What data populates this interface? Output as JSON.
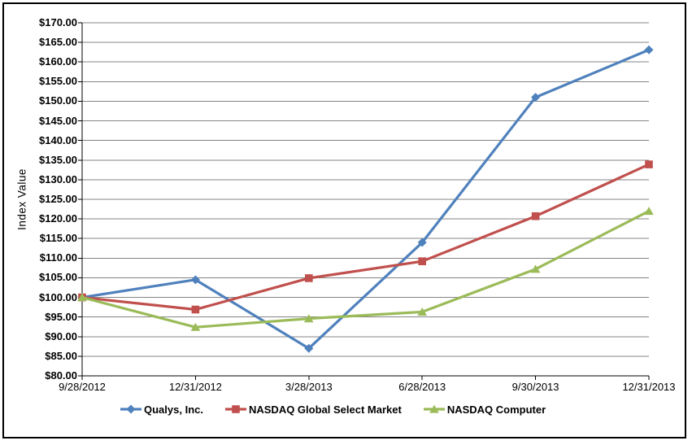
{
  "chart_data": {
    "type": "line",
    "title": "",
    "xlabel": "",
    "ylabel": "Index Value",
    "ylim": [
      80,
      170
    ],
    "y_step": 5,
    "y_tick_labels": [
      "$170.00",
      "$165.00",
      "$160.00",
      "$155.00",
      "$150.00",
      "$145.00",
      "$140.00",
      "$135.00",
      "$130.00",
      "$125.00",
      "$120.00",
      "$115.00",
      "$110.00",
      "$105.00",
      "$100.00",
      "$95.00",
      "$90.00",
      "$85.00",
      "$80.00"
    ],
    "categories": [
      "9/28/2012",
      "12/31/2012",
      "3/28/2013",
      "6/28/2013",
      "9/30/2013",
      "12/31/2013"
    ],
    "series": [
      {
        "name": "Qualys, Inc.",
        "marker": "diamond",
        "color": "#4F81BD",
        "values": [
          100.0,
          104.5,
          87.0,
          114.0,
          151.0,
          163.1
        ]
      },
      {
        "name": "NASDAQ Global Select Market",
        "marker": "square",
        "color": "#C0504D",
        "values": [
          100.0,
          96.9,
          104.9,
          109.2,
          120.7,
          133.9
        ]
      },
      {
        "name": "NASDAQ Computer",
        "marker": "triangle",
        "color": "#9BBB59",
        "values": [
          100.0,
          92.4,
          94.6,
          96.3,
          107.2,
          122.0
        ]
      }
    ],
    "grid": "horizontal",
    "legend_position": "bottom"
  },
  "colors": {
    "background": "#FFFFFF",
    "border": "#000000",
    "axis": "#000000",
    "gridline": "#848484",
    "text": "#000000"
  }
}
